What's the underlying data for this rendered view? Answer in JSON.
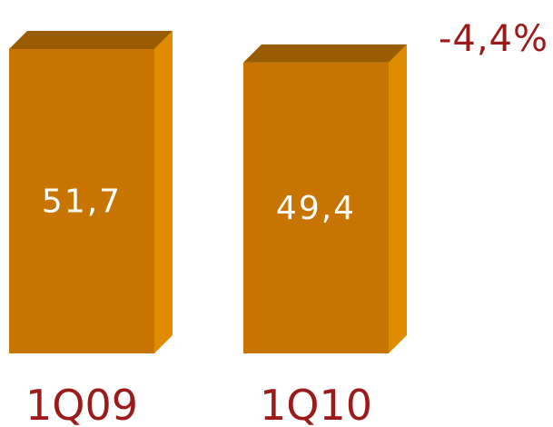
{
  "chart_data": {
    "type": "bar",
    "categories": [
      "1Q09",
      "1Q10"
    ],
    "values": [
      51.7,
      49.4
    ],
    "value_labels": [
      "51,7",
      "49,4"
    ],
    "annotation": "-4,4%",
    "title": "",
    "xlabel": "",
    "ylabel": "",
    "ylim": [
      0,
      51.7
    ],
    "grid": false,
    "style": "3d-bar"
  },
  "colors": {
    "bar_front": "#c87400",
    "bar_side": "#e08c00",
    "bar_top": "#9a5c00",
    "label_text": "#9b1b1b",
    "value_text": "#ffffff"
  }
}
